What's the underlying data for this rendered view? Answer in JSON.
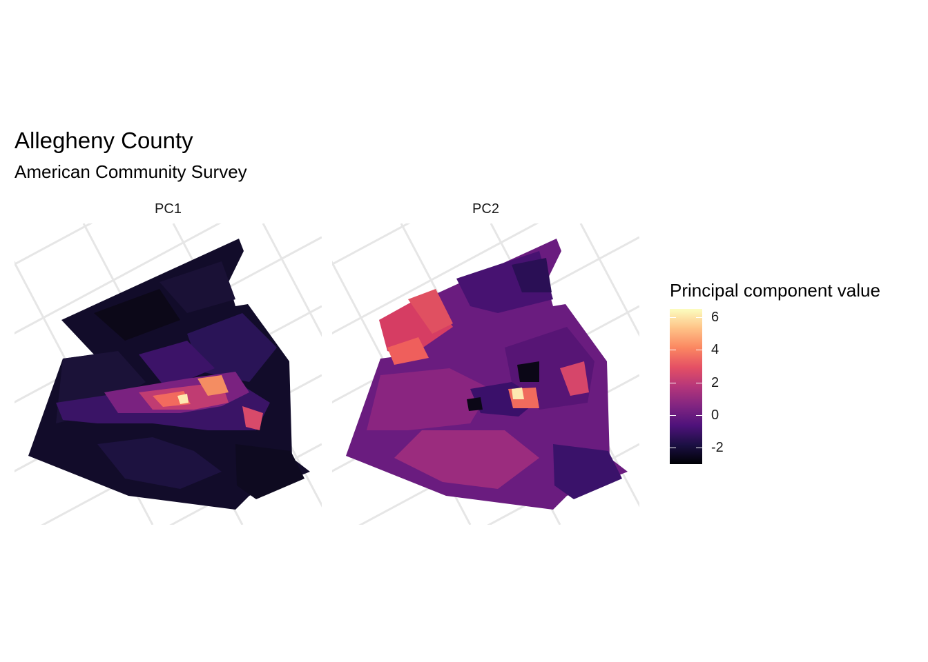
{
  "title": "Allegheny County",
  "subtitle": "American Community Survey",
  "facets": [
    {
      "label": "PC1",
      "description": "Choropleth of census tracts; mostly dark purple/black with bright orange-yellow values concentrated along the central river corridor"
    },
    {
      "label": "PC2",
      "description": "Choropleth of census tracts; magenta/purple throughout with red/orange block in the northwest and a bright cluster near the center"
    }
  ],
  "legend": {
    "title": "Principal component value",
    "ticks": [
      "6",
      "4",
      "2",
      "0",
      "-2"
    ],
    "tick_values": [
      6,
      4,
      2,
      0,
      -2
    ],
    "range": [
      -3,
      6.5
    ],
    "palette": "magma",
    "colors": [
      "#000004",
      "#1c1044",
      "#4f127b",
      "#812581",
      "#b5367a",
      "#e55064",
      "#fb8761",
      "#fec287",
      "#fcfdbf"
    ]
  },
  "colors": {
    "graticule": "#e6e6e6",
    "background": "#ffffff"
  }
}
